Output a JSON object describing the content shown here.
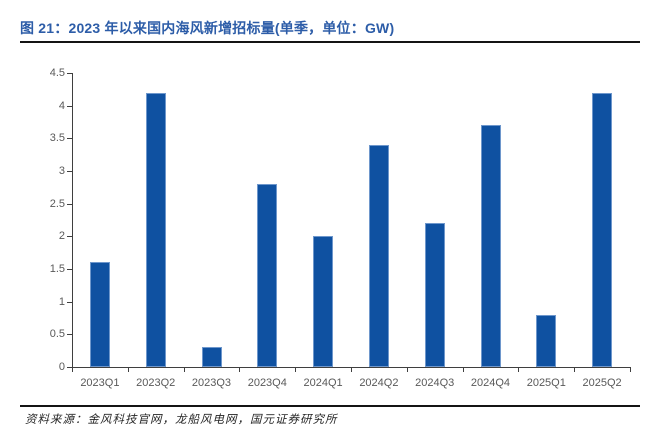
{
  "header": {
    "title": "图 21：2023 年以来国内海风新增招标量(单季，单位：GW)"
  },
  "footer": {
    "source": "资料来源：金风科技官网，龙船风电网，国元证券研究所"
  },
  "colors": {
    "title": "#2D5DA8",
    "bar": "#0F51A1",
    "bar_edge": "#6E97CC",
    "axis": "#3f3f3f",
    "tick_label": "#595959",
    "rule": "#141414",
    "source_text": "#262626"
  },
  "chart_data": {
    "type": "bar",
    "title": "2023 年以来国内海风新增招标量(单季，单位：GW)",
    "unit": "GW",
    "categories": [
      "2023Q1",
      "2023Q2",
      "2023Q3",
      "2023Q4",
      "2024Q1",
      "2024Q2",
      "2024Q3",
      "2024Q4",
      "2025Q1",
      "2025Q2"
    ],
    "values": [
      1.6,
      4.2,
      0.3,
      2.8,
      2.0,
      3.4,
      2.2,
      3.7,
      0.8,
      4.2
    ],
    "ylim": [
      0,
      4.5
    ],
    "yticks": [
      0,
      0.5,
      1,
      1.5,
      2,
      2.5,
      3,
      3.5,
      4,
      4.5
    ],
    "grid": false,
    "legend_position": "none",
    "series_name": "海风新增招标量",
    "data_labels": false
  }
}
